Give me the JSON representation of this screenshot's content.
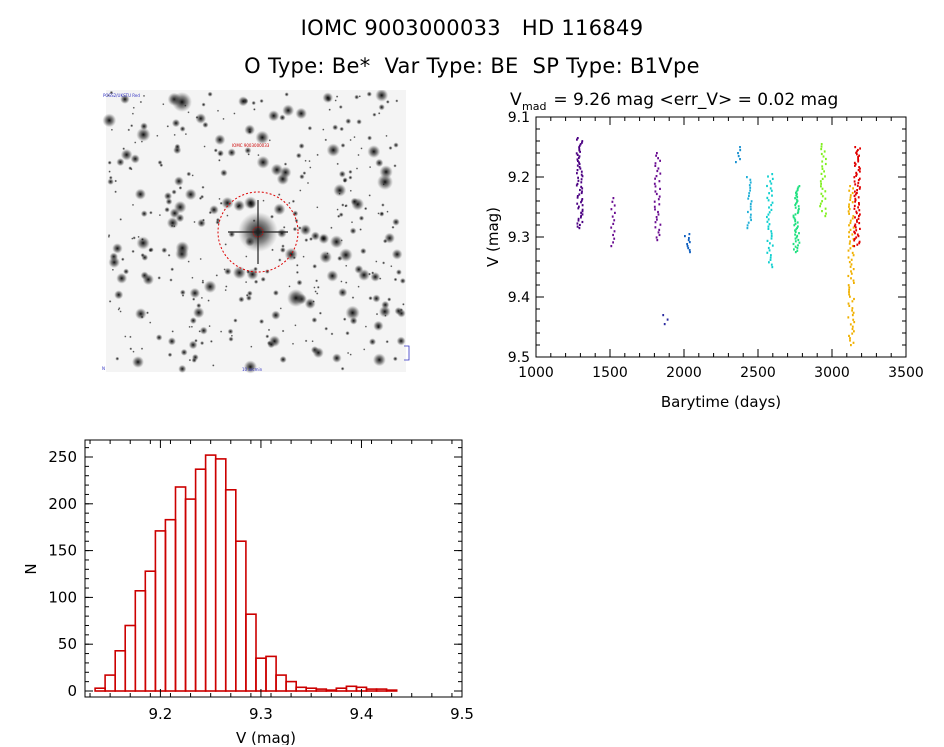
{
  "header": {
    "title_line1": "IOMC 9003000033   HD 116849",
    "title_line2": "O Type: Be*  Var Type: BE  SP Type: B1Vpe"
  },
  "finder": {
    "corner_label_tl": "POSS2/UKSTU Red",
    "marker_label": "IOMC 9003000033",
    "corner_label_bl": "N",
    "bottom_label": "10 arcmin"
  },
  "colors": {
    "axis": "#000000",
    "histogram": "#cc0000",
    "finder_circle": "#dd0000"
  },
  "chart_data": [
    {
      "id": "light_curve",
      "type": "scatter",
      "title_main": "V",
      "title_sub": "mad",
      "title_rest": " = 9.26 mag <err_V> = 0.02 mag",
      "xlabel": "Barytime (days)",
      "ylabel": "V (mag)",
      "xlim": [
        1000,
        3500
      ],
      "ylim": [
        9.5,
        9.1
      ],
      "xticks": [
        1000,
        1500,
        2000,
        2500,
        3000,
        3500
      ],
      "yticks": [
        9.1,
        9.2,
        9.3,
        9.4,
        9.5
      ],
      "xtick_labels": [
        "1000",
        "1500",
        "2000",
        "2500",
        "3000",
        "3500"
      ],
      "ytick_labels": [
        "9.1",
        "9.2",
        "9.3",
        "9.4",
        "9.5"
      ],
      "groups": [
        {
          "x": 1295,
          "y_min": 9.135,
          "y_max": 9.285,
          "n": 60,
          "color": "#4b0082"
        },
        {
          "x": 1525,
          "y_min": 9.235,
          "y_max": 9.315,
          "n": 14,
          "color": "#6a0d91"
        },
        {
          "x": 1820,
          "y_min": 9.16,
          "y_max": 9.305,
          "n": 35,
          "color": "#6a0d91"
        },
        {
          "x": 1880,
          "y_min": 9.43,
          "y_max": 9.445,
          "n": 3,
          "color": "#2a2aa0"
        },
        {
          "x": 2025,
          "y_min": 9.295,
          "y_max": 9.325,
          "n": 10,
          "color": "#1060c0"
        },
        {
          "x": 2370,
          "y_min": 9.15,
          "y_max": 9.175,
          "n": 6,
          "color": "#1890d0"
        },
        {
          "x": 2440,
          "y_min": 9.2,
          "y_max": 9.285,
          "n": 20,
          "color": "#20b0d8"
        },
        {
          "x": 2580,
          "y_min": 9.195,
          "y_max": 9.35,
          "n": 40,
          "color": "#10d0d0"
        },
        {
          "x": 2760,
          "y_min": 9.215,
          "y_max": 9.325,
          "n": 50,
          "color": "#20e080"
        },
        {
          "x": 2940,
          "y_min": 9.145,
          "y_max": 9.265,
          "n": 30,
          "color": "#80f020"
        },
        {
          "x": 3130,
          "y_min": 9.215,
          "y_max": 9.48,
          "n": 70,
          "color": "#f0b000"
        },
        {
          "x": 3170,
          "y_min": 9.15,
          "y_max": 9.315,
          "n": 70,
          "color": "#e00000"
        }
      ]
    },
    {
      "id": "histogram",
      "type": "bar",
      "xlabel": "V (mag)",
      "ylabel": "N",
      "xlim": [
        9.125,
        9.5
      ],
      "ylim": [
        0,
        270
      ],
      "xticks": [
        9.2,
        9.3,
        9.4,
        9.5
      ],
      "yticks": [
        0,
        50,
        100,
        150,
        200,
        250
      ],
      "xtick_labels": [
        "9.2",
        "9.3",
        "9.4",
        "9.5"
      ],
      "ytick_labels": [
        "0",
        "50",
        "100",
        "150",
        "200",
        "250"
      ],
      "bin_start": 9.135,
      "bin_width": 0.01,
      "values": [
        3,
        17,
        43,
        70,
        107,
        128,
        171,
        183,
        218,
        205,
        237,
        252,
        248,
        215,
        160,
        82,
        35,
        37,
        17,
        10,
        4,
        3,
        2,
        1,
        3,
        5,
        4,
        2,
        2,
        1,
        0
      ]
    }
  ]
}
